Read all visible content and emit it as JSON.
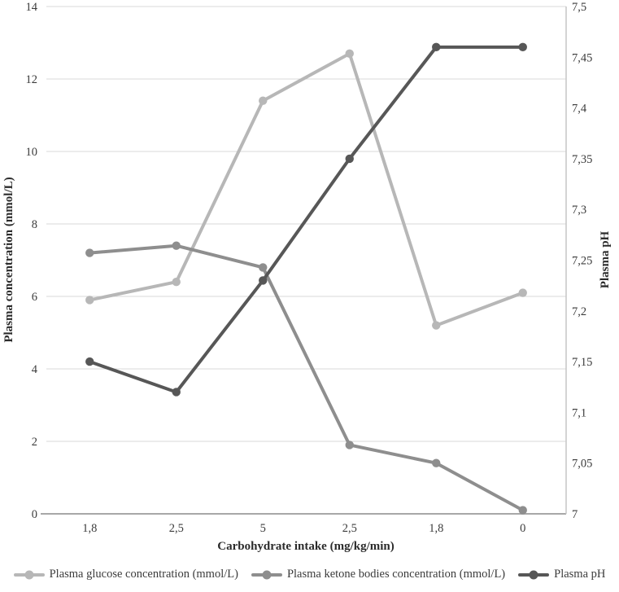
{
  "chart_data": {
    "type": "line",
    "categories": [
      "1,8",
      "2,5",
      "5",
      "2,5",
      "1,8",
      "0"
    ],
    "xlabel": "Carbohydrate intake (mg/kg/min)",
    "left_axis": {
      "label": "Plasma concentration (mmol/L)",
      "min": 0,
      "max": 14,
      "ticks": [
        {
          "value": 0,
          "label": "0"
        },
        {
          "value": 2,
          "label": "2"
        },
        {
          "value": 4,
          "label": "4"
        },
        {
          "value": 6,
          "label": "6"
        },
        {
          "value": 8,
          "label": "8"
        },
        {
          "value": 10,
          "label": "10"
        },
        {
          "value": 12,
          "label": "12"
        },
        {
          "value": 14,
          "label": "14"
        }
      ]
    },
    "right_axis": {
      "label": "Plasma pH",
      "min": 7,
      "max": 7.5,
      "ticks": [
        {
          "value": 7,
          "label": "7"
        },
        {
          "value": 7.05,
          "label": "7,05"
        },
        {
          "value": 7.1,
          "label": "7,1"
        },
        {
          "value": 7.15,
          "label": "7,15"
        },
        {
          "value": 7.2,
          "label": "7,2"
        },
        {
          "value": 7.25,
          "label": "7,25"
        },
        {
          "value": 7.3,
          "label": "7,3"
        },
        {
          "value": 7.35,
          "label": "7,35"
        },
        {
          "value": 7.4,
          "label": "7,4"
        },
        {
          "value": 7.45,
          "label": "7,45"
        },
        {
          "value": 7.5,
          "label": "7,5"
        }
      ]
    },
    "series": [
      {
        "name": "Plasma glucose concentration (mmol/L)",
        "axis": "left",
        "color": "#b7b7b7",
        "values": [
          5.9,
          6.4,
          11.4,
          12.7,
          5.2,
          6.1
        ]
      },
      {
        "name": "Plasma ketone bodies concentration (mmol/L)",
        "axis": "left",
        "color": "#8e8e8e",
        "values": [
          7.2,
          7.4,
          6.8,
          1.9,
          1.4,
          0.1
        ]
      },
      {
        "name": "Plasma pH",
        "axis": "right",
        "color": "#575757",
        "values": [
          7.15,
          7.12,
          7.23,
          7.35,
          7.46,
          7.46
        ]
      }
    ],
    "grid": true,
    "legend_position": "bottom",
    "colors": {
      "gridline": "#d9d9d9",
      "axis_line": "#a8a8a8",
      "plot_border": "#c6c6c6",
      "text": "#3b3b3b"
    }
  }
}
